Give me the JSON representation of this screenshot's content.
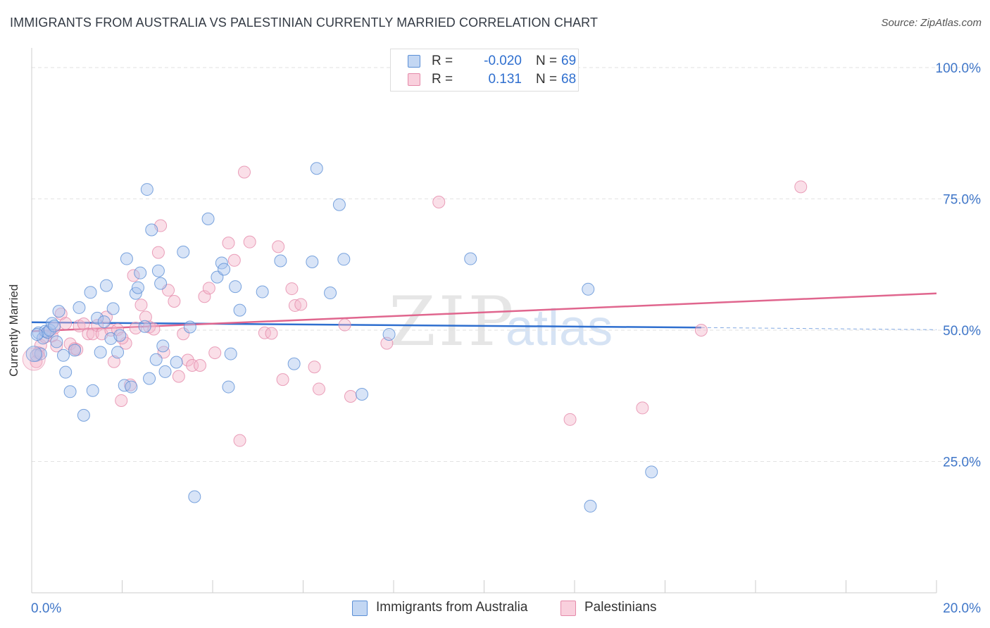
{
  "title": "IMMIGRANTS FROM AUSTRALIA VS PALESTINIAN CURRENTLY MARRIED CORRELATION CHART",
  "source": "Source: ZipAtlas.com",
  "watermark": {
    "zip": "ZIP",
    "atlas": "atlas"
  },
  "legend": {
    "rows": [
      {
        "r_label": "R =",
        "r_value": "-0.020",
        "n_label": "N =",
        "n_value": "69"
      },
      {
        "r_label": "R =",
        "r_value": "0.131",
        "n_label": "N =",
        "n_value": "68"
      }
    ]
  },
  "bottom_legend": {
    "series1": "Immigrants from Australia",
    "series2": "Palestinians"
  },
  "colors": {
    "blue_fill": "#a8c4ee",
    "blue_stroke": "#5b8fd6",
    "blue_line": "#2f6fcf",
    "pink_fill": "#f5b8cc",
    "pink_stroke": "#e58aaa",
    "pink_line": "#e0668e",
    "tick_label": "#3f76c8"
  },
  "chart_data": {
    "type": "scatter",
    "title": "IMMIGRANTS FROM AUSTRALIA VS PALESTINIAN CURRENTLY MARRIED CORRELATION CHART",
    "xlabel": "",
    "ylabel": "Currently Married",
    "xlim": [
      0,
      20
    ],
    "ylim": [
      0,
      100
    ],
    "x_tick_labels": [
      "0.0%",
      "20.0%"
    ],
    "y_ticks": [
      25,
      50,
      75,
      100
    ],
    "y_tick_labels": [
      "25.0%",
      "50.0%",
      "75.0%",
      "100.0%"
    ],
    "grid": true,
    "legend_position": "top-center",
    "series": [
      {
        "name": "Immigrants from Australia",
        "color": "#a8c4ee",
        "trend": {
          "x": [
            0,
            14.8
          ],
          "y": [
            51.5,
            50.5
          ],
          "dashed_extension": [
            14.8,
            20
          ],
          "dashed_y": [
            50.5,
            50.1
          ]
        },
        "points": [
          [
            0.1,
            45.2
          ],
          [
            0.15,
            49.5
          ],
          [
            0.25,
            48.5
          ],
          [
            0.3,
            49.8
          ],
          [
            0.35,
            49.6
          ],
          [
            0.4,
            50.0
          ],
          [
            0.45,
            51.3
          ],
          [
            0.5,
            50.8
          ],
          [
            0.55,
            47.8
          ],
          [
            0.6,
            53.6
          ],
          [
            0.7,
            45.2
          ],
          [
            0.75,
            42.0
          ],
          [
            0.85,
            38.3
          ],
          [
            0.95,
            46.2
          ],
          [
            1.05,
            54.3
          ],
          [
            1.15,
            33.8
          ],
          [
            1.3,
            57.2
          ],
          [
            1.35,
            38.5
          ],
          [
            1.45,
            52.3
          ],
          [
            1.52,
            45.8
          ],
          [
            1.6,
            51.6
          ],
          [
            1.65,
            58.5
          ],
          [
            1.75,
            48.4
          ],
          [
            1.8,
            54.1
          ],
          [
            1.9,
            45.8
          ],
          [
            1.95,
            49.0
          ],
          [
            2.05,
            39.5
          ],
          [
            2.1,
            63.6
          ],
          [
            2.2,
            39.2
          ],
          [
            2.3,
            57.0
          ],
          [
            2.35,
            58.1
          ],
          [
            2.4,
            60.9
          ],
          [
            2.5,
            50.7
          ],
          [
            2.55,
            76.8
          ],
          [
            2.6,
            40.8
          ],
          [
            2.65,
            69.1
          ],
          [
            2.75,
            44.4
          ],
          [
            2.8,
            61.3
          ],
          [
            2.85,
            58.9
          ],
          [
            2.9,
            47.0
          ],
          [
            2.95,
            42.1
          ],
          [
            3.2,
            43.9
          ],
          [
            3.35,
            64.9
          ],
          [
            3.5,
            50.6
          ],
          [
            3.9,
            71.2
          ],
          [
            4.1,
            60.1
          ],
          [
            4.2,
            62.8
          ],
          [
            4.25,
            61.6
          ],
          [
            4.35,
            39.2
          ],
          [
            4.4,
            45.5
          ],
          [
            4.5,
            58.3
          ],
          [
            4.6,
            53.8
          ],
          [
            5.1,
            57.3
          ],
          [
            5.5,
            63.2
          ],
          [
            5.8,
            43.6
          ],
          [
            6.2,
            63.0
          ],
          [
            6.3,
            80.8
          ],
          [
            6.6,
            57.1
          ],
          [
            6.8,
            73.9
          ],
          [
            6.9,
            63.5
          ],
          [
            7.3,
            37.8
          ],
          [
            7.9,
            49.2
          ],
          [
            9.7,
            63.6
          ],
          [
            12.3,
            57.8
          ],
          [
            13.7,
            23.0
          ],
          [
            12.35,
            16.5
          ],
          [
            3.6,
            18.3
          ],
          [
            0.12,
            49.2
          ],
          [
            0.2,
            45.5
          ]
        ]
      },
      {
        "name": "Palestinians",
        "color": "#f5b8cc",
        "trend": {
          "x": [
            0,
            20
          ],
          "y": [
            49.8,
            57.0
          ]
        },
        "points": [
          [
            0.1,
            44.0
          ],
          [
            0.2,
            47.1
          ],
          [
            0.35,
            49.6
          ],
          [
            0.45,
            48.9
          ],
          [
            0.55,
            47.0
          ],
          [
            0.65,
            53.1
          ],
          [
            0.75,
            51.3
          ],
          [
            0.85,
            47.4
          ],
          [
            0.95,
            46.5
          ],
          [
            1.05,
            50.8
          ],
          [
            1.15,
            51.2
          ],
          [
            1.25,
            49.3
          ],
          [
            1.35,
            49.3
          ],
          [
            1.45,
            50.9
          ],
          [
            1.55,
            49.3
          ],
          [
            1.65,
            52.5
          ],
          [
            1.75,
            50.0
          ],
          [
            1.82,
            44.0
          ],
          [
            1.9,
            50.1
          ],
          [
            1.98,
            36.6
          ],
          [
            2.08,
            47.5
          ],
          [
            2.18,
            39.6
          ],
          [
            2.25,
            60.4
          ],
          [
            2.3,
            50.4
          ],
          [
            2.42,
            54.8
          ],
          [
            2.52,
            52.5
          ],
          [
            2.6,
            50.6
          ],
          [
            2.7,
            50.2
          ],
          [
            2.8,
            64.8
          ],
          [
            2.85,
            69.9
          ],
          [
            2.92,
            45.8
          ],
          [
            3.02,
            57.6
          ],
          [
            3.15,
            55.5
          ],
          [
            3.25,
            41.2
          ],
          [
            3.35,
            49.3
          ],
          [
            3.45,
            44.3
          ],
          [
            3.55,
            43.3
          ],
          [
            3.72,
            43.3
          ],
          [
            3.82,
            56.4
          ],
          [
            3.92,
            58.0
          ],
          [
            4.05,
            45.7
          ],
          [
            4.35,
            66.6
          ],
          [
            4.48,
            63.3
          ],
          [
            4.6,
            29.0
          ],
          [
            4.7,
            80.1
          ],
          [
            4.82,
            66.8
          ],
          [
            5.15,
            49.5
          ],
          [
            5.3,
            49.4
          ],
          [
            5.45,
            65.9
          ],
          [
            5.55,
            40.6
          ],
          [
            5.75,
            57.9
          ],
          [
            5.82,
            54.7
          ],
          [
            5.95,
            54.9
          ],
          [
            6.25,
            43.0
          ],
          [
            6.35,
            38.8
          ],
          [
            6.92,
            51.0
          ],
          [
            7.05,
            37.4
          ],
          [
            7.85,
            47.5
          ],
          [
            9.0,
            74.4
          ],
          [
            11.9,
            33.0
          ],
          [
            13.5,
            35.2
          ],
          [
            14.8,
            50.0
          ],
          [
            17.0,
            77.3
          ],
          [
            0.15,
            45.7
          ],
          [
            0.3,
            48.7
          ],
          [
            0.5,
            50.4
          ],
          [
            1.0,
            46.3
          ],
          [
            2.0,
            48.5
          ]
        ]
      }
    ]
  }
}
